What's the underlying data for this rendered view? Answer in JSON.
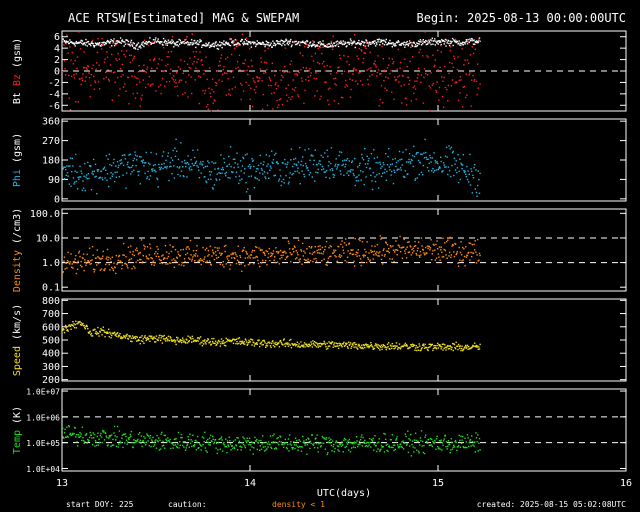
{
  "header": {
    "title": "ACE RTSW[Estimated] MAG & SWEPAM",
    "begin": "Begin: 2025-08-13 00:00:00UTC"
  },
  "footer": {
    "start_doy": "start DOY: 225",
    "caution": "caution:",
    "density_note": "density < 1",
    "created": "created: 2025-08-15 05:02:08UTC"
  },
  "colors": {
    "background": "#000000",
    "axes": "#ffffff",
    "bt": "#ffffff",
    "bz": "#ff2020",
    "phi": "#22b4e0",
    "density": "#ff8c10",
    "speed": "#f0e020",
    "temp": "#22dd22",
    "caution": "#ff8c10"
  },
  "chart_data": [
    {
      "type": "scatter",
      "ylabel_parts": [
        {
          "text": "Bt",
          "color": "#ffffff"
        },
        {
          "text": " Bz",
          "color": "#ff2020"
        },
        {
          "text": " (gsm)",
          "color": "#ffffff"
        }
      ],
      "ylim": [
        -7,
        7
      ],
      "yticks": [
        -6,
        -4,
        -2,
        0,
        2,
        4,
        6
      ],
      "ytick_labels": [
        "-6",
        "-4",
        "-2",
        "0",
        "2",
        "4",
        "6"
      ],
      "dashed": [
        0
      ],
      "series": [
        {
          "color": "#ffffff",
          "x": [
            13.0,
            13.1,
            13.2,
            13.3,
            13.4,
            13.5,
            13.6,
            13.7,
            13.8,
            13.9,
            14.0,
            14.1,
            14.2,
            14.3,
            14.4,
            14.5,
            14.6,
            14.7,
            14.8,
            14.9,
            15.0,
            15.1,
            15.22
          ],
          "y": [
            5.2,
            5.0,
            4.8,
            5.3,
            4.6,
            5.4,
            4.9,
            5.0,
            4.7,
            5.1,
            5.0,
            4.8,
            5.2,
            5.0,
            4.6,
            4.9,
            5.1,
            5.2,
            4.8,
            5.0,
            5.3,
            5.1,
            5.4
          ],
          "spread": 0.3
        },
        {
          "color": "#ff2020",
          "x": [
            13.0,
            13.1,
            13.2,
            13.3,
            13.4,
            13.5,
            13.6,
            13.7,
            13.8,
            13.9,
            14.0,
            14.1,
            14.2,
            14.3,
            14.4,
            14.5,
            14.6,
            14.7,
            14.8,
            14.9,
            15.0,
            15.1,
            15.22
          ],
          "y": [
            0.5,
            -1.0,
            1.5,
            0.0,
            -2.0,
            1.0,
            -0.5,
            0.0,
            -2.5,
            1.0,
            0.0,
            -1.5,
            -2.0,
            0.5,
            0.0,
            -1.0,
            1.5,
            0.0,
            -0.5,
            1.0,
            -1.5,
            0.5,
            0.0
          ],
          "spread": 3.0
        }
      ]
    },
    {
      "type": "scatter",
      "ylabel_parts": [
        {
          "text": "Phi",
          "color": "#22b4e0"
        },
        {
          "text": " (gsm)",
          "color": "#ffffff"
        }
      ],
      "ylim": [
        -10,
        370
      ],
      "yticks": [
        0,
        90,
        180,
        270,
        360
      ],
      "ytick_labels": [
        "0",
        "90",
        "180",
        "270",
        "360"
      ],
      "dashed": [],
      "series": [
        {
          "color": "#22b4e0",
          "x": [
            13.0,
            13.1,
            13.2,
            13.3,
            13.4,
            13.5,
            13.6,
            13.7,
            13.8,
            13.9,
            14.0,
            14.1,
            14.2,
            14.3,
            14.4,
            14.5,
            14.6,
            14.7,
            14.8,
            14.9,
            15.0,
            15.1,
            15.22
          ],
          "y": [
            140,
            120,
            130,
            150,
            160,
            140,
            180,
            150,
            120,
            160,
            130,
            150,
            140,
            160,
            180,
            150,
            140,
            130,
            160,
            190,
            170,
            150,
            100
          ],
          "spread": 40
        }
      ]
    },
    {
      "type": "scatter",
      "log": true,
      "ylabel_parts": [
        {
          "text": "Density",
          "color": "#ff8c10"
        },
        {
          "text": " (/cm3)",
          "color": "#ffffff"
        }
      ],
      "ylim": [
        0.07,
        150
      ],
      "yticks": [
        0.1,
        1.0,
        10.0,
        100.0
      ],
      "ytick_labels": [
        "0.1",
        "1.0",
        "10.0",
        "100.0"
      ],
      "dashed": [
        1.0,
        10.0
      ],
      "series": [
        {
          "color": "#ff8c10",
          "x": [
            13.0,
            13.1,
            13.2,
            13.3,
            13.4,
            13.5,
            13.6,
            13.7,
            13.8,
            13.9,
            14.0,
            14.1,
            14.2,
            14.3,
            14.4,
            14.5,
            14.6,
            14.7,
            14.8,
            14.9,
            15.0,
            15.1,
            15.22
          ],
          "y": [
            0.9,
            1.1,
            1.3,
            1.6,
            2.0,
            2.3,
            2.2,
            1.9,
            2.0,
            2.1,
            1.8,
            2.0,
            2.2,
            2.1,
            2.4,
            2.6,
            2.9,
            3.1,
            3.3,
            3.5,
            3.3,
            3.0,
            2.9
          ],
          "spread": 0.25
        }
      ]
    },
    {
      "type": "scatter",
      "ylabel_parts": [
        {
          "text": "Speed",
          "color": "#f0e020"
        },
        {
          "text": " (km/s)",
          "color": "#ffffff"
        }
      ],
      "ylim": [
        190,
        810
      ],
      "yticks": [
        200,
        300,
        400,
        500,
        600,
        700,
        800
      ],
      "ytick_labels": [
        "200",
        "300",
        "400",
        "500",
        "600",
        "700",
        "800"
      ],
      "dashed": [],
      "series": [
        {
          "color": "#f0e020",
          "x": [
            13.0,
            13.05,
            13.1,
            13.15,
            13.2,
            13.3,
            13.4,
            13.5,
            13.6,
            13.7,
            13.8,
            13.9,
            14.0,
            14.1,
            14.2,
            14.3,
            14.4,
            14.5,
            14.6,
            14.7,
            14.8,
            14.9,
            15.0,
            15.1,
            15.22
          ],
          "y": [
            580,
            620,
            640,
            560,
            570,
            540,
            510,
            520,
            500,
            505,
            490,
            495,
            485,
            480,
            475,
            470,
            470,
            465,
            462,
            460,
            458,
            455,
            452,
            450,
            452
          ],
          "spread": 15
        }
      ]
    },
    {
      "type": "scatter",
      "log": true,
      "ylabel_parts": [
        {
          "text": "Temp",
          "color": "#22dd22"
        },
        {
          "text": " (K)",
          "color": "#ffffff"
        }
      ],
      "ylim": [
        8000,
        12000000
      ],
      "yticks": [
        10000,
        100000,
        1000000,
        10000000
      ],
      "ytick_labels": [
        "1.0E+04",
        "1.0E+05",
        "1.0E+06",
        "1.0E+07"
      ],
      "dashed": [
        100000,
        1000000
      ],
      "series": [
        {
          "color": "#22dd22",
          "x": [
            13.0,
            13.1,
            13.2,
            13.3,
            13.4,
            13.5,
            13.6,
            13.7,
            13.8,
            13.9,
            14.0,
            14.1,
            14.2,
            14.3,
            14.4,
            14.5,
            14.6,
            14.7,
            14.8,
            14.9,
            15.0,
            15.1,
            15.22
          ],
          "y": [
            230000,
            200000,
            170000,
            150000,
            130000,
            120000,
            110000,
            115000,
            105000,
            100000,
            98000,
            100000,
            95000,
            100000,
            97000,
            95000,
            100000,
            98000,
            96000,
            100000,
            102000,
            98000,
            100000
          ],
          "spread": 0.18
        }
      ]
    }
  ],
  "x_axis": {
    "xlim": [
      13,
      16
    ],
    "ticks": [
      13,
      14,
      15,
      16
    ],
    "tick_labels": [
      "13",
      "14",
      "15",
      "16"
    ],
    "label": "UTC(days)"
  }
}
